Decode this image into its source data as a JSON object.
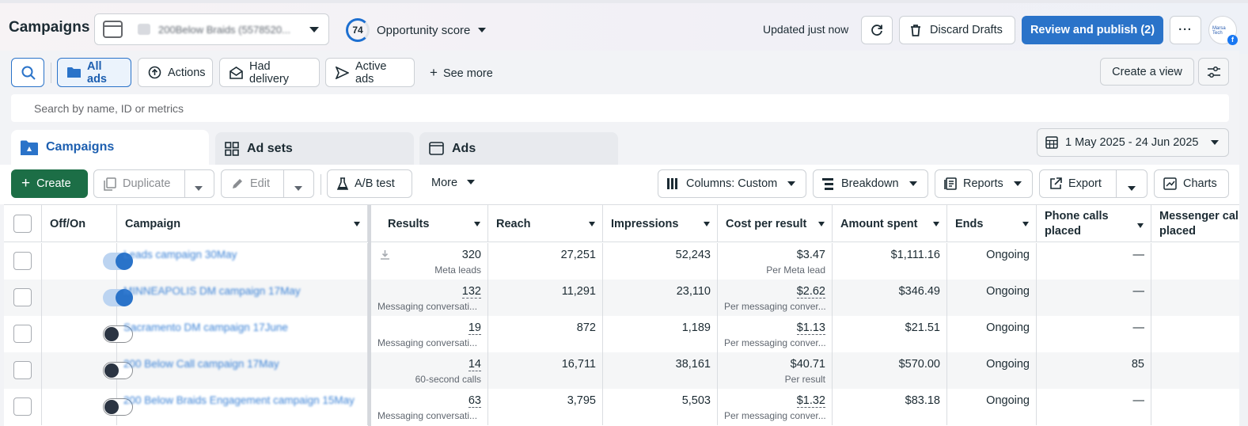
{
  "header": {
    "title": "Campaigns",
    "account_name": "200Below Braids (5578520...",
    "opportunity_score": "74",
    "opportunity_label": "Opportunity score",
    "updated_text": "Updated just now",
    "discard_label": "Discard Drafts",
    "publish_label": "Review and publish (2)",
    "more_label": "···",
    "avatar_text": "Marsa Tech"
  },
  "filters": {
    "chips": [
      "All ads",
      "Actions",
      "Had delivery",
      "Active ads"
    ],
    "see_more": "See more",
    "create_view": "Create a view",
    "search_placeholder": "Search by name, ID or metrics"
  },
  "tabs": {
    "campaigns": "Campaigns",
    "ad_sets": "Ad sets",
    "ads": "Ads"
  },
  "date_range": "1 May 2025 - 24 Jun 2025",
  "toolbar": {
    "create": "Create",
    "duplicate": "Duplicate",
    "edit": "Edit",
    "ab_test": "A/B test",
    "more": "More",
    "columns": "Columns: Custom",
    "breakdown": "Breakdown",
    "reports": "Reports",
    "export": "Export",
    "charts": "Charts"
  },
  "table": {
    "headers": {
      "onoff": "Off/On",
      "campaign": "Campaign",
      "results": "Results",
      "reach": "Reach",
      "impressions": "Impressions",
      "cost": "Cost per result",
      "spent": "Amount spent",
      "ends": "Ends",
      "phone1": "Phone calls",
      "phone2": "placed",
      "msg1": "Messenger calls",
      "msg2": "placed"
    },
    "rows": [
      {
        "on": true,
        "name": "Leads campaign 30May",
        "results": "320",
        "results_sub": "Meta leads",
        "reach": "27,251",
        "impressions": "52,243",
        "cost": "$3.47",
        "cost_sub": "Per Meta lead",
        "spent": "$1,111.16",
        "ends": "Ongoing",
        "phone": "—"
      },
      {
        "on": true,
        "name": "MINNEAPOLIS DM campaign 17May",
        "results": "132",
        "results_sub": "Messaging conversati...",
        "reach": "11,291",
        "impressions": "23,110",
        "cost": "$2.62",
        "cost_sub": "Per messaging conver...",
        "spent": "$346.49",
        "ends": "Ongoing",
        "phone": "—"
      },
      {
        "on": false,
        "name": "Sacramento DM campaign 17June",
        "results": "19",
        "results_sub": "Messaging conversati...",
        "reach": "872",
        "impressions": "1,189",
        "cost": "$1.13",
        "cost_sub": "Per messaging conver...",
        "spent": "$21.51",
        "ends": "Ongoing",
        "phone": "—"
      },
      {
        "on": false,
        "name": "200 Below Call campaign 17May",
        "results": "14",
        "results_sub": "60-second calls",
        "reach": "16,711",
        "impressions": "38,161",
        "cost": "$40.71",
        "cost_sub": "Per result",
        "spent": "$570.00",
        "ends": "Ongoing",
        "phone": "85"
      },
      {
        "on": false,
        "name": "200 Below Braids Engagement campaign 15May",
        "results": "63",
        "results_sub": "Messaging conversati...",
        "reach": "3,795",
        "impressions": "5,503",
        "cost": "$1.32",
        "cost_sub": "Per messaging conver...",
        "spent": "$83.18",
        "ends": "Ongoing",
        "phone": "—"
      }
    ]
  }
}
